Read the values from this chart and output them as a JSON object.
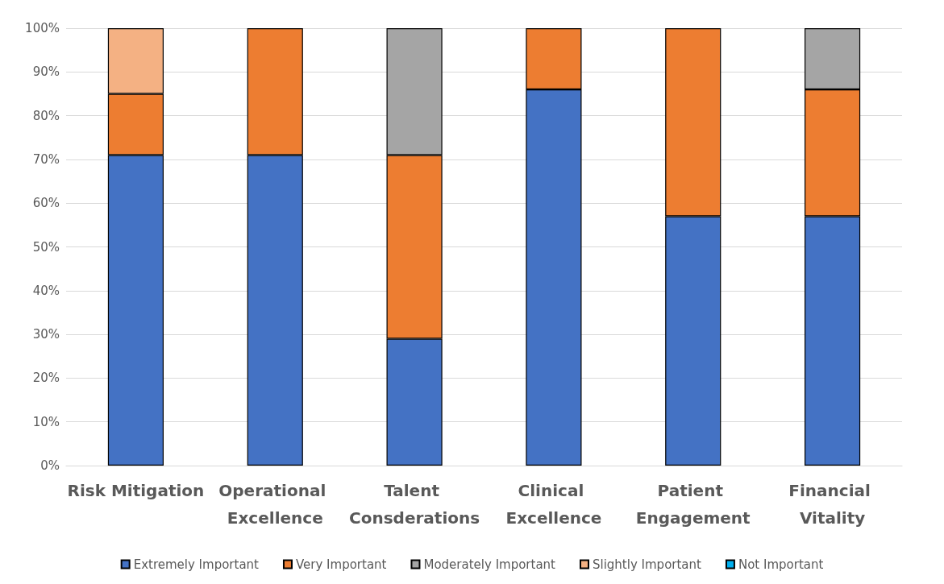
{
  "chart_data": {
    "type": "bar",
    "stacked": true,
    "categories": [
      "Risk Mitigation",
      "Operational Excellence",
      "Talent Consderations",
      "Clinical Excellence",
      "Patient Engagement",
      "Financial Vitality"
    ],
    "series": [
      {
        "name": "Extremely Important",
        "color": "#4472c4",
        "values": [
          71,
          71,
          29,
          86,
          57,
          57
        ]
      },
      {
        "name": "Very Important",
        "color": "#ed7d31",
        "values": [
          14,
          29,
          42,
          14,
          43,
          29
        ]
      },
      {
        "name": "Moderately Important",
        "color": "#a5a5a5",
        "values": [
          null,
          null,
          29,
          null,
          null,
          14
        ]
      },
      {
        "name": "Slightly Important",
        "color": "#f4b183",
        "values": [
          15,
          null,
          null,
          null,
          null,
          null
        ]
      },
      {
        "name": "Not Important",
        "color": "#00b0f0",
        "values": [
          null,
          null,
          null,
          null,
          null,
          null
        ]
      }
    ],
    "ylim": [
      0,
      100
    ],
    "yticks": [
      {
        "value": 0,
        "label": "0%"
      },
      {
        "value": 10,
        "label": "10%"
      },
      {
        "value": 20,
        "label": "20%"
      },
      {
        "value": 30,
        "label": "30%"
      },
      {
        "value": 40,
        "label": "40%"
      },
      {
        "value": 50,
        "label": "50%"
      },
      {
        "value": 60,
        "label": "60%"
      },
      {
        "value": 70,
        "label": "70%"
      },
      {
        "value": 80,
        "label": "80%"
      },
      {
        "value": 90,
        "label": "90%"
      },
      {
        "value": 100,
        "label": "100%"
      }
    ],
    "grid": "y",
    "legend": "bottom"
  }
}
